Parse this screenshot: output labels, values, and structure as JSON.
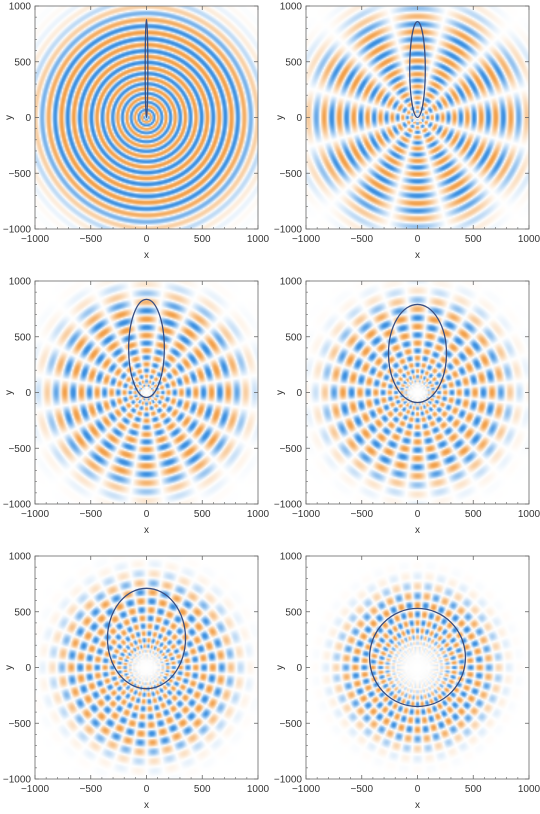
{
  "colors": {
    "positive": "#f2a04a",
    "negative": "#3b8fe0",
    "orbit": "#3a4f82",
    "frame": "#666666"
  },
  "chart_data": [
    {
      "type": "heatmap",
      "xlabel": "x",
      "ylabel": "y",
      "xlim": [
        -1000,
        1000
      ],
      "ylim": [
        -1000,
        1000
      ],
      "xticks": [
        "-1000",
        "-500",
        "0",
        "500",
        "1000"
      ],
      "yticks": [
        "-1000",
        "-500",
        "0",
        "500",
        "1000"
      ],
      "angular_order": 0,
      "radial_scale": 70,
      "pattern_center_radius": 0,
      "pattern_radius": 1000,
      "orbit": {
        "center_x": 0,
        "center_y": 440,
        "semi_axis_x": 12,
        "semi_axis_y": 440
      }
    },
    {
      "type": "heatmap",
      "xlabel": "x",
      "ylabel": "y",
      "xlim": [
        -1000,
        1000
      ],
      "ylim": [
        -1000,
        1000
      ],
      "xticks": [
        "-1000",
        "-500",
        "0",
        "500",
        "1000"
      ],
      "yticks": [
        "-1000",
        "-500",
        "0",
        "500",
        "1000"
      ],
      "angular_order": 6,
      "radial_scale": 90,
      "pattern_center_radius": 0,
      "pattern_radius": 1000,
      "orbit": {
        "center_x": 0,
        "center_y": 430,
        "semi_axis_x": 70,
        "semi_axis_y": 430
      }
    },
    {
      "type": "heatmap",
      "xlabel": "x",
      "ylabel": "y",
      "xlim": [
        -1000,
        1000
      ],
      "ylim": [
        -1000,
        1000
      ],
      "xticks": [
        "-1000",
        "-500",
        "0",
        "500",
        "1000"
      ],
      "yticks": [
        "-1000",
        "-500",
        "0",
        "500",
        "1000"
      ],
      "angular_order": 10,
      "radial_scale": 110,
      "pattern_center_radius": 60,
      "pattern_radius": 900,
      "orbit": {
        "center_x": 0,
        "center_y": 395,
        "semi_axis_x": 160,
        "semi_axis_y": 440
      }
    },
    {
      "type": "heatmap",
      "xlabel": "x",
      "ylabel": "y",
      "xlim": [
        -1000,
        1000
      ],
      "ylim": [
        -1000,
        1000
      ],
      "xticks": [
        "-1000",
        "-500",
        "0",
        "500",
        "1000"
      ],
      "yticks": [
        "-1000",
        "-500",
        "0",
        "500",
        "1000"
      ],
      "angular_order": 14,
      "radial_scale": 120,
      "pattern_center_radius": 120,
      "pattern_radius": 850,
      "orbit": {
        "center_x": 0,
        "center_y": 350,
        "semi_axis_x": 260,
        "semi_axis_y": 440
      }
    },
    {
      "type": "heatmap",
      "xlabel": "x",
      "ylabel": "y",
      "xlim": [
        -1000,
        1000
      ],
      "ylim": [
        -1000,
        1000
      ],
      "xticks": [
        "-1000",
        "-500",
        "0",
        "500",
        "1000"
      ],
      "yticks": [
        "-1000",
        "-500",
        "0",
        "500",
        "1000"
      ],
      "angular_order": 19,
      "radial_scale": 130,
      "pattern_center_radius": 190,
      "pattern_radius": 800,
      "orbit": {
        "center_x": 0,
        "center_y": 260,
        "semi_axis_x": 350,
        "semi_axis_y": 450
      }
    },
    {
      "type": "heatmap",
      "xlabel": "x",
      "ylabel": "y",
      "xlim": [
        -1000,
        1000
      ],
      "ylim": [
        -1000,
        1000
      ],
      "xticks": [
        "-1000",
        "-500",
        "0",
        "500",
        "1000"
      ],
      "yticks": [
        "-1000",
        "-500",
        "0",
        "500",
        "1000"
      ],
      "angular_order": 24,
      "radial_scale": 150,
      "pattern_center_radius": 300,
      "pattern_radius": 720,
      "orbit": {
        "center_x": 0,
        "center_y": 90,
        "semi_axis_x": 430,
        "semi_axis_y": 440
      }
    }
  ]
}
